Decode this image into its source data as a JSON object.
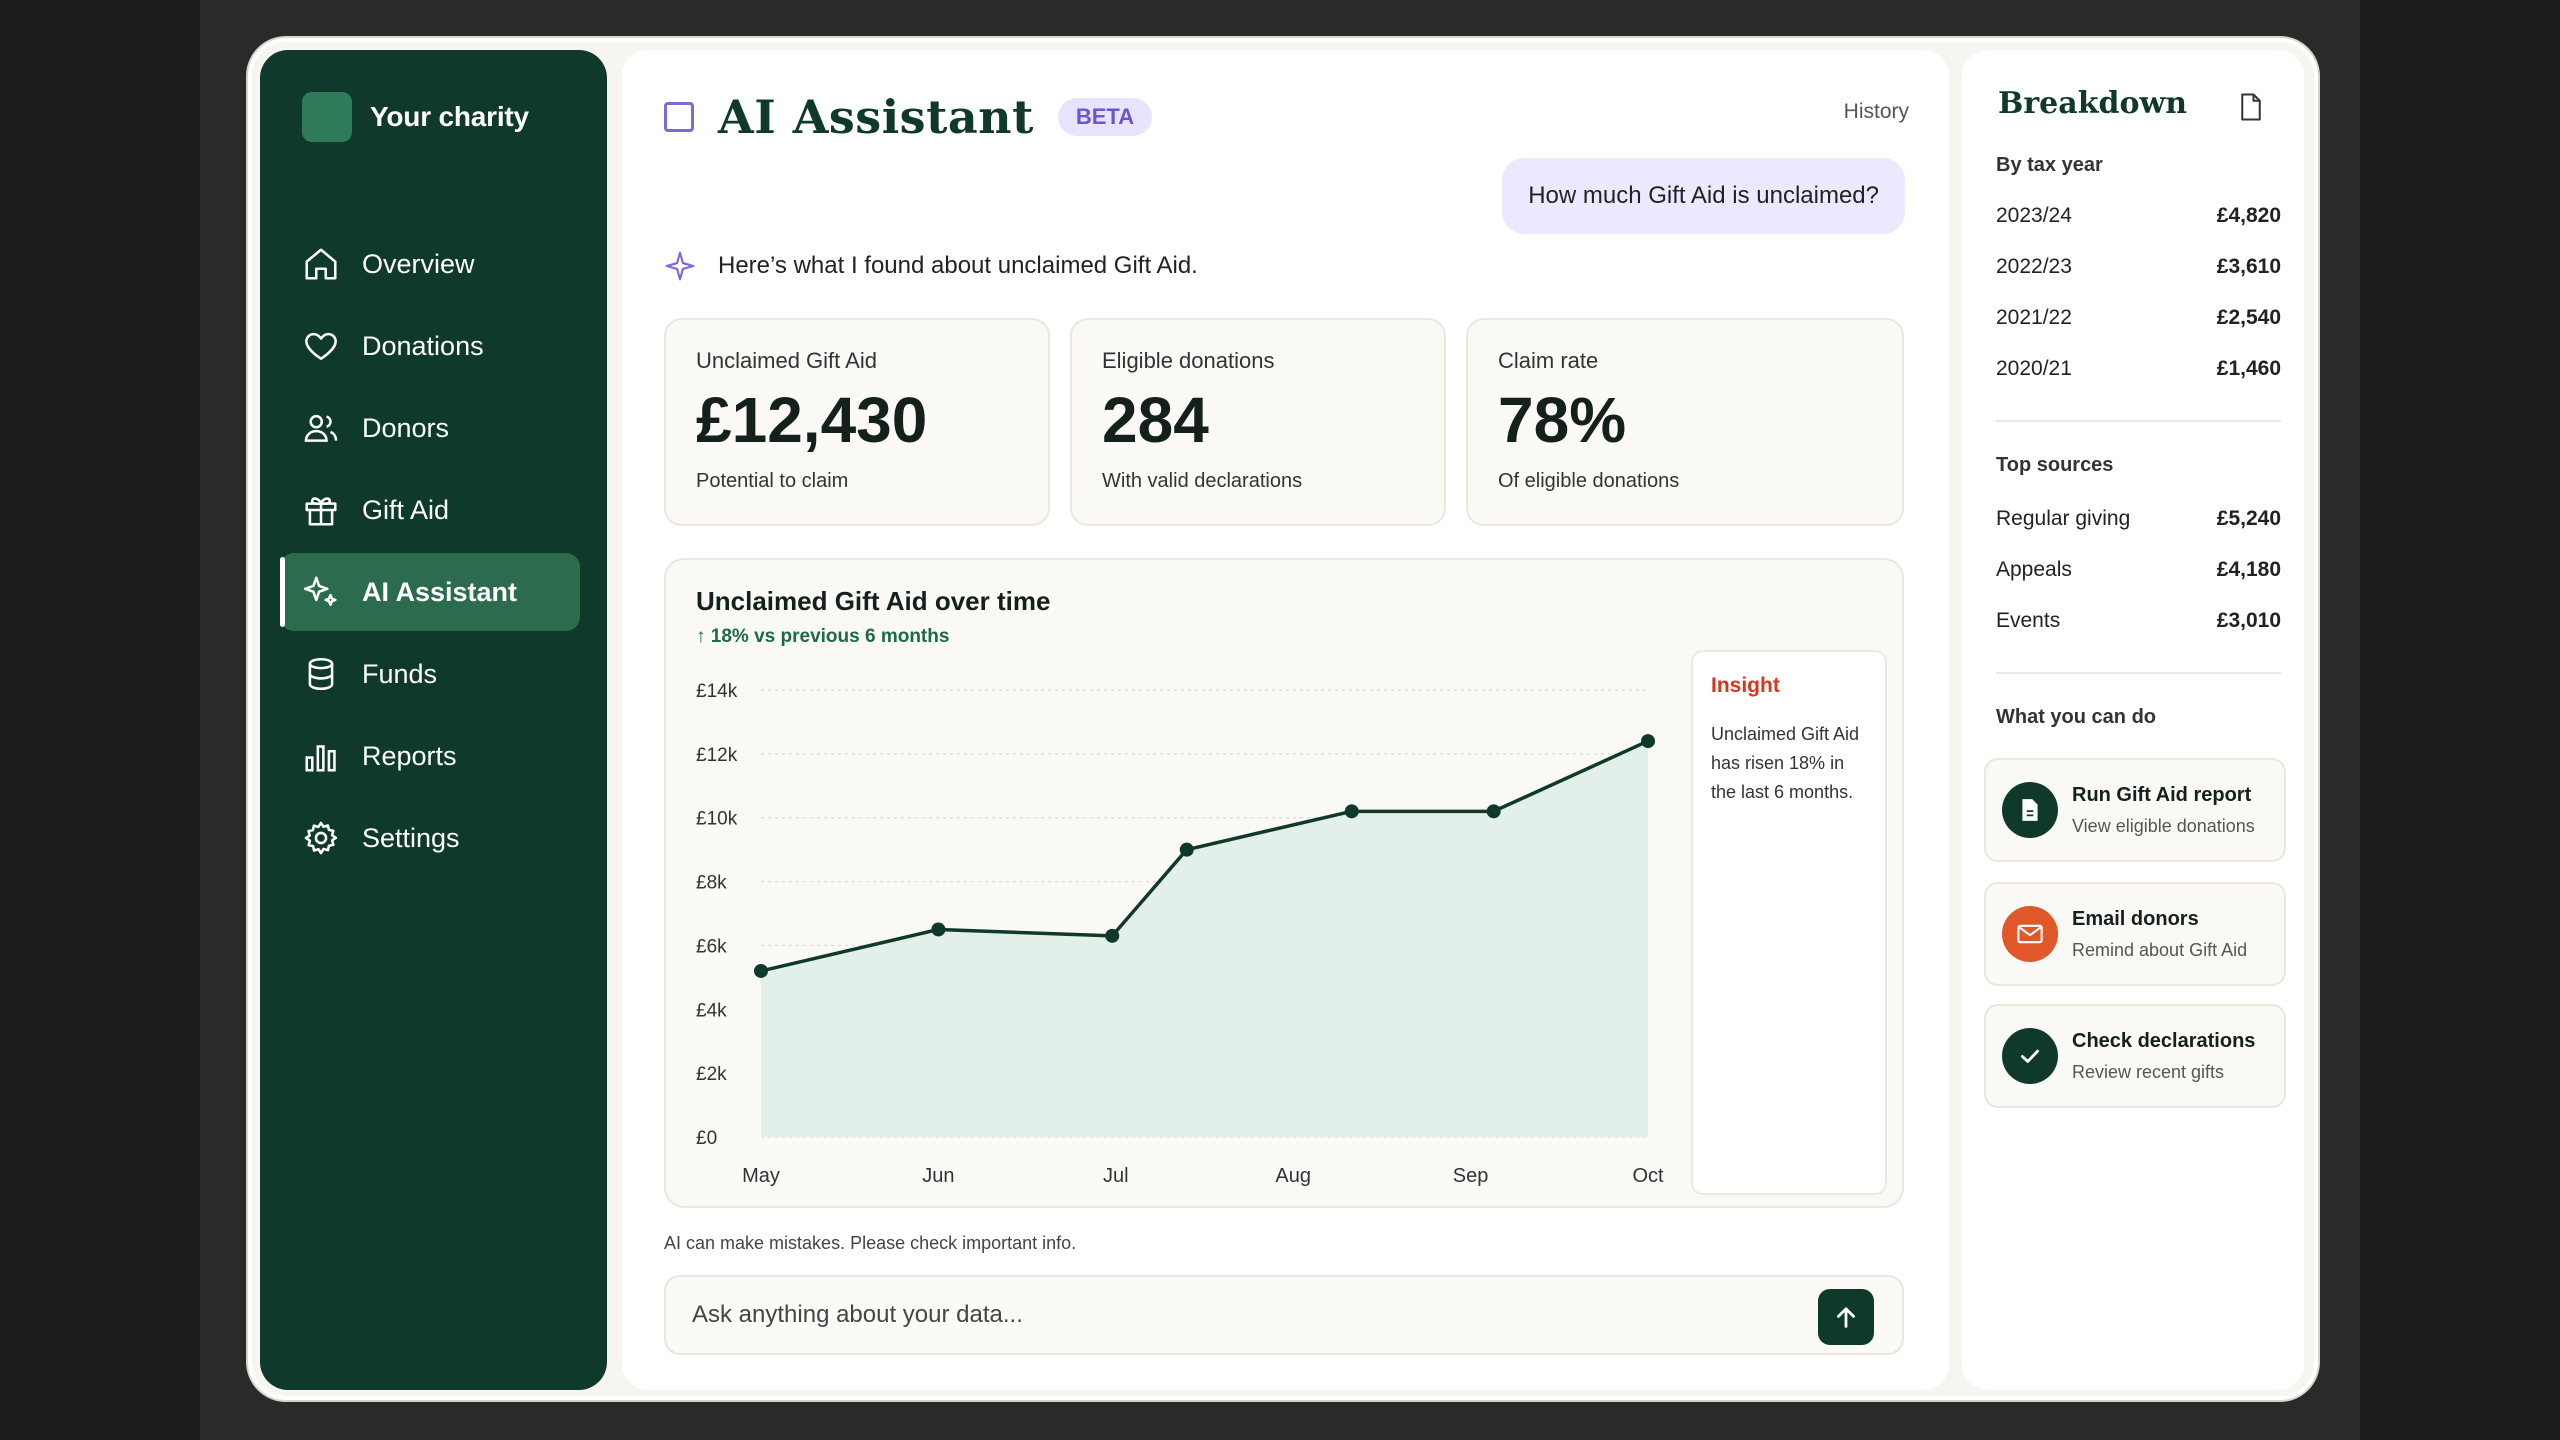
{
  "sidebar": {
    "brand": "Your charity",
    "items": [
      {
        "label": "Overview",
        "icon": "home-icon"
      },
      {
        "label": "Donations",
        "icon": "heart-icon"
      },
      {
        "label": "Donors",
        "icon": "users-icon"
      },
      {
        "label": "Gift Aid",
        "icon": "gift-icon"
      },
      {
        "label": "AI Assistant",
        "icon": "sparkle-icon",
        "active": true
      },
      {
        "label": "Funds",
        "icon": "database-icon"
      },
      {
        "label": "Reports",
        "icon": "bar-chart-icon"
      },
      {
        "label": "Settings",
        "icon": "gear-icon"
      }
    ]
  },
  "header": {
    "title": "AI Assistant",
    "badge": "BETA",
    "history": "History"
  },
  "chat": {
    "user_message": "How much Gift Aid is unclaimed?",
    "ai_intro": "Here’s what I found about unclaimed Gift Aid."
  },
  "cards": [
    {
      "label": "Unclaimed Gift Aid",
      "value": "£12,430",
      "sub": "Potential to claim"
    },
    {
      "label": "Eligible donations",
      "value": "284",
      "sub": "With valid declarations"
    },
    {
      "label": "Claim rate",
      "value": "78%",
      "sub": "Of eligible donations"
    }
  ],
  "chart": {
    "title": "Unclaimed Gift Aid over time",
    "subtitle": "18% vs previous 6 months",
    "insight_title": "Insight",
    "insight_text": "Unclaimed Gift Aid has risen 18% in the last 6 months."
  },
  "chart_data": {
    "type": "area",
    "title": "Unclaimed Gift Aid over time",
    "categories": [
      "May",
      "Jun",
      "Jul",
      "Aug",
      "Sep",
      "Oct"
    ],
    "x": [
      0,
      1,
      1.98,
      2.4,
      3.33,
      4.13,
      5
    ],
    "values": [
      5200,
      6500,
      6300,
      9000,
      10200,
      10200,
      12400
    ],
    "y_ticks": [
      "£0",
      "£2k",
      "£4k",
      "£6k",
      "£8k",
      "£10k",
      "£12k",
      "£14k"
    ],
    "ylim": [
      0,
      14000
    ],
    "grid": true
  },
  "footer": {
    "disclaimer": "AI can make mistakes. Please check important info.",
    "input_placeholder": "Ask anything about your data..."
  },
  "breakdown": {
    "title": "Breakdown",
    "by_tax_year_label": "By tax year",
    "tax_years": [
      {
        "year": "2023/24",
        "amount": "£4,820"
      },
      {
        "year": "2022/23",
        "amount": "£3,610"
      },
      {
        "year": "2021/22",
        "amount": "£2,540"
      },
      {
        "year": "2020/21",
        "amount": "£1,460"
      }
    ],
    "top_sources_label": "Top sources",
    "sources": [
      {
        "name": "Regular giving",
        "amount": "£5,240"
      },
      {
        "name": "Appeals",
        "amount": "£4,180"
      },
      {
        "name": "Events",
        "amount": "£3,010"
      }
    ],
    "actions_label": "What you can do",
    "actions": [
      {
        "title": "Run Gift Aid report",
        "sub": "View eligible donations",
        "icon": "document-icon",
        "color": "#0f3a2b"
      },
      {
        "title": "Email donors",
        "sub": "Remind about Gift Aid",
        "icon": "mail-icon",
        "color": "#e0582a"
      },
      {
        "title": "Check declarations",
        "sub": "Review recent gifts",
        "icon": "check-icon",
        "color": "#0f3a2b"
      }
    ]
  }
}
